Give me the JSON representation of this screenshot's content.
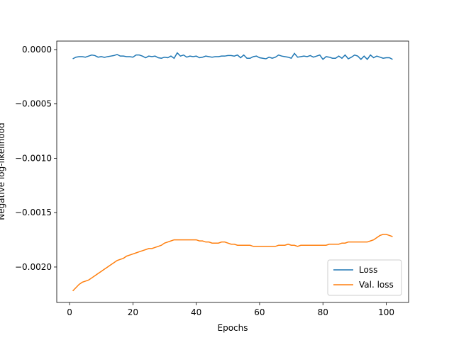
{
  "chart_data": {
    "type": "line",
    "xlabel": "Epochs",
    "ylabel": "Negative log-likelihood",
    "x": [
      1,
      2,
      3,
      4,
      5,
      6,
      7,
      8,
      9,
      10,
      11,
      12,
      13,
      14,
      15,
      16,
      17,
      18,
      19,
      20,
      21,
      22,
      23,
      24,
      25,
      26,
      27,
      28,
      29,
      30,
      31,
      32,
      33,
      34,
      35,
      36,
      37,
      38,
      39,
      40,
      41,
      42,
      43,
      44,
      45,
      46,
      47,
      48,
      49,
      50,
      51,
      52,
      53,
      54,
      55,
      56,
      57,
      58,
      59,
      60,
      61,
      62,
      63,
      64,
      65,
      66,
      67,
      68,
      69,
      70,
      71,
      72,
      73,
      74,
      75,
      76,
      77,
      78,
      79,
      80,
      81,
      82,
      83,
      84,
      85,
      86,
      87,
      88,
      89,
      90,
      91,
      92,
      93,
      94,
      95,
      96,
      97,
      98,
      99,
      100,
      101,
      102
    ],
    "series": [
      {
        "name": "Loss",
        "color": "#1f77b4",
        "values": [
          -8.5e-05,
          -7e-05,
          -6.5e-05,
          -6.5e-05,
          -7e-05,
          -6e-05,
          -5e-05,
          -5.5e-05,
          -7e-05,
          -6.5e-05,
          -7.2e-05,
          -6.5e-05,
          -6e-05,
          -5.5e-05,
          -4.5e-05,
          -6e-05,
          -6e-05,
          -6.5e-05,
          -6.5e-05,
          -7e-05,
          -5e-05,
          -5e-05,
          -6e-05,
          -7.5e-05,
          -6e-05,
          -6.5e-05,
          -6e-05,
          -7.5e-05,
          -8e-05,
          -7e-05,
          -7.5e-05,
          -6e-05,
          -8e-05,
          -3e-05,
          -6e-05,
          -5e-05,
          -7e-05,
          -6e-05,
          -6.5e-05,
          -6e-05,
          -7.5e-05,
          -7e-05,
          -6e-05,
          -6.5e-05,
          -7e-05,
          -6.5e-05,
          -6.5e-05,
          -6e-05,
          -6e-05,
          -5.5e-05,
          -5.5e-05,
          -6e-05,
          -5e-05,
          -7.5e-05,
          -5e-05,
          -8e-05,
          -8e-05,
          -6.5e-05,
          -6e-05,
          -7.5e-05,
          -8e-05,
          -8.5e-05,
          -7e-05,
          -8e-05,
          -7e-05,
          -5e-05,
          -6e-05,
          -6.5e-05,
          -7e-05,
          -8e-05,
          -3.5e-05,
          -7e-05,
          -6.5e-05,
          -6e-05,
          -6.5e-05,
          -5.5e-05,
          -7e-05,
          -6e-05,
          -5e-05,
          -9e-05,
          -6.5e-05,
          -7e-05,
          -8e-05,
          -8e-05,
          -6e-05,
          -8e-05,
          -5e-05,
          -8.5e-05,
          -7e-05,
          -5e-05,
          -6e-05,
          -9e-05,
          -6e-05,
          -9e-05,
          -5e-05,
          -7.5e-05,
          -6e-05,
          -7e-05,
          -8e-05,
          -7.5e-05,
          -7.5e-05,
          -9e-05
        ]
      },
      {
        "name": "Val. loss",
        "color": "#ff7f0e",
        "values": [
          -0.00222,
          -0.00219,
          -0.00216,
          -0.00214,
          -0.00213,
          -0.00212,
          -0.0021,
          -0.00208,
          -0.00206,
          -0.00204,
          -0.00202,
          -0.002,
          -0.00198,
          -0.00196,
          -0.00194,
          -0.00193,
          -0.00192,
          -0.0019,
          -0.00189,
          -0.00188,
          -0.00187,
          -0.00186,
          -0.00185,
          -0.00184,
          -0.00183,
          -0.00183,
          -0.00182,
          -0.00181,
          -0.0018,
          -0.00178,
          -0.00177,
          -0.00176,
          -0.00175,
          -0.00175,
          -0.00175,
          -0.00175,
          -0.00175,
          -0.00175,
          -0.00175,
          -0.00175,
          -0.00176,
          -0.00176,
          -0.00177,
          -0.00177,
          -0.00178,
          -0.00178,
          -0.00178,
          -0.00177,
          -0.00177,
          -0.00178,
          -0.00179,
          -0.00179,
          -0.0018,
          -0.0018,
          -0.0018,
          -0.0018,
          -0.0018,
          -0.00181,
          -0.00181,
          -0.00181,
          -0.00181,
          -0.00181,
          -0.00181,
          -0.00181,
          -0.00181,
          -0.0018,
          -0.0018,
          -0.0018,
          -0.00179,
          -0.0018,
          -0.0018,
          -0.00181,
          -0.0018,
          -0.0018,
          -0.0018,
          -0.0018,
          -0.0018,
          -0.0018,
          -0.0018,
          -0.0018,
          -0.0018,
          -0.00179,
          -0.00179,
          -0.00179,
          -0.00179,
          -0.00178,
          -0.00178,
          -0.00177,
          -0.00177,
          -0.00177,
          -0.00177,
          -0.00177,
          -0.00177,
          -0.00177,
          -0.00176,
          -0.00175,
          -0.00173,
          -0.00171,
          -0.0017,
          -0.0017,
          -0.00171,
          -0.00172
        ]
      }
    ],
    "xlim": [
      -4.05,
      107.05
    ],
    "xticks": [
      0,
      20,
      40,
      60,
      80,
      100
    ],
    "ylim": [
      -0.002326,
      7.8e-05
    ],
    "yticks": [
      {
        "value": -0.002,
        "label": "−0.0020"
      },
      {
        "value": -0.0015,
        "label": "−0.0015"
      },
      {
        "value": -0.001,
        "label": "−0.0010"
      },
      {
        "value": -0.0005,
        "label": "−0.0005"
      },
      {
        "value": 0,
        "label": "0.0000"
      }
    ],
    "legend": "lower right",
    "grid": false
  }
}
